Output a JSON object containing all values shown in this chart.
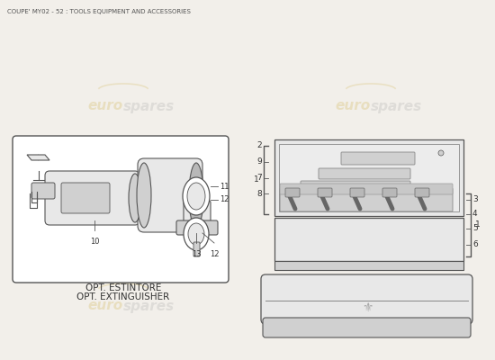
{
  "title": "COUPE' MY02 - 52 : TOOLS EQUIPMENT AND ACCESSORIES",
  "bg_color": "#f2efea",
  "watermark_color_euro": "#c8a428",
  "watermark_color_spares": "#999999",
  "left_box_label1": "OPT. ESTINTORE",
  "left_box_label2": "OPT. EXTINGUISHER",
  "line_color": "#555555",
  "text_color": "#333333",
  "fill_light": "#e8e8e8",
  "fill_mid": "#d0d0d0",
  "fill_dark": "#b8b8b8"
}
